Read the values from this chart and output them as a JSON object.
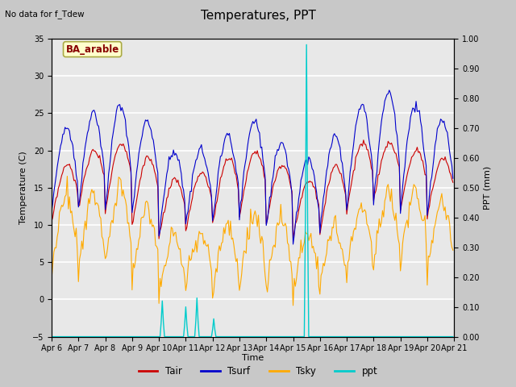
{
  "title": "Temperatures, PPT",
  "subtitle": "No data for f_Tdew",
  "box_label": "BA_arable",
  "xlabel": "Time",
  "ylabel_left": "Temperature (C)",
  "ylabel_right": "PPT (mm)",
  "ylim_left": [
    -5,
    35
  ],
  "ylim_right": [
    0.0,
    1.0
  ],
  "yticks_left": [
    -5,
    0,
    5,
    10,
    15,
    20,
    25,
    30,
    35
  ],
  "yticks_right": [
    0.0,
    0.1,
    0.2,
    0.3,
    0.4,
    0.5,
    0.6,
    0.7,
    0.8,
    0.9,
    1.0
  ],
  "xtick_labels": [
    "Apr 6",
    "Apr 7",
    "Apr 8",
    "Apr 9",
    "Apr 10",
    "Apr 11",
    "Apr 12",
    "Apr 13",
    "Apr 14",
    "Apr 15",
    "Apr 16",
    "Apr 17",
    "Apr 18",
    "Apr 19",
    "Apr 20",
    "Apr 21"
  ],
  "color_Tair": "#cc0000",
  "color_Tsurf": "#0000cc",
  "color_Tsky": "#ffaa00",
  "color_ppt": "#00cccc",
  "fig_bg": "#c8c8c8",
  "plot_bg": "#e8e8e8",
  "grid_color": "#ffffff",
  "box_bg": "#ffffcc",
  "box_edge": "#aaaa44"
}
